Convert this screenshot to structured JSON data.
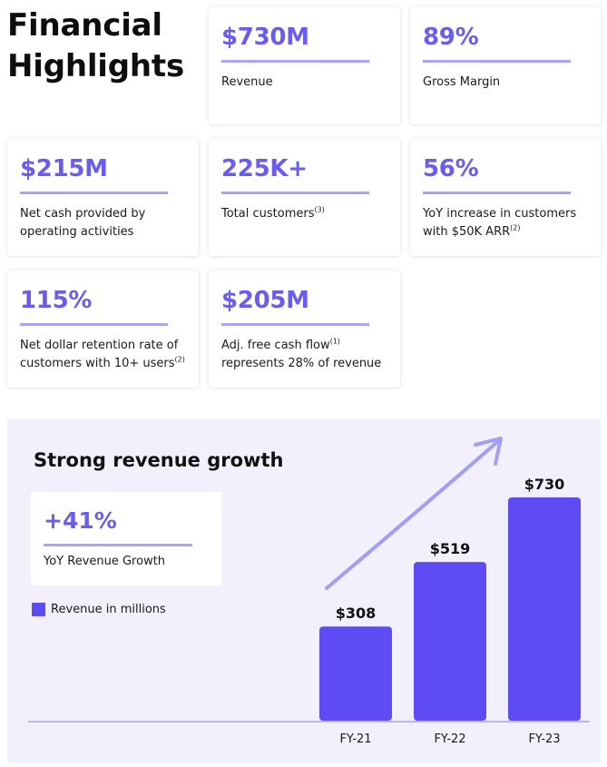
{
  "header": {
    "title_line1": "Financial",
    "title_line2": "Highlights"
  },
  "metrics": [
    {
      "value": "$730M",
      "label": "Revenue",
      "sup": ""
    },
    {
      "value": "89%",
      "label": "Gross Margin",
      "sup": ""
    },
    {
      "value": "$215M",
      "label": "Net cash provided by operating activities",
      "sup": ""
    },
    {
      "value": "225K+",
      "label": "Total customers",
      "sup": "(3)"
    },
    {
      "value": "56%",
      "label_line1": "YoY increase in customers",
      "label_line2": "with $50K ARR",
      "sup": "(2)"
    },
    {
      "value": "115%",
      "label_line1": "Net dollar retention rate of",
      "label_line2": "customers with 10+ users",
      "sup": "(2)"
    },
    {
      "value": "$205M",
      "label_line1": "Adj. free cash flow",
      "label_line2": "represents 28% of revenue",
      "sup": "(1)"
    }
  ],
  "growth": {
    "heading": "Strong revenue growth",
    "stat_value": "+41%",
    "stat_label": "YoY Revenue Growth",
    "legend_label": "Revenue in millions"
  },
  "colors": {
    "accent": "#6a5cf3",
    "bar": "#5f4bf4",
    "rule": "#a9a4f6",
    "panel": "#f1f0fc",
    "arrow": "#a39df5"
  },
  "chart_data": {
    "type": "bar",
    "title": "Strong revenue growth",
    "categories": [
      "FY-21",
      "FY-22",
      "FY-23"
    ],
    "values": [
      308,
      519,
      730
    ],
    "data_labels": [
      "$308",
      "$519",
      "$730"
    ],
    "ylabel": "Revenue in millions",
    "xlabel": "",
    "ylim": [
      0,
      730
    ],
    "annotation": "+41% YoY Revenue Growth"
  }
}
